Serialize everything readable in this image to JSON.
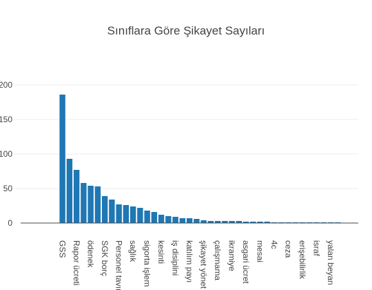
{
  "chart_data": {
    "type": "bar",
    "title": "Sınıflara Göre Şikayet Sayıları",
    "xlabel": "",
    "ylabel": "",
    "ylim": [
      0,
      200
    ],
    "yticks": [
      0,
      50,
      100,
      150,
      200
    ],
    "grid": true,
    "legend": "none",
    "bar_color": "#1f77b4",
    "categories": [
      "GSS",
      "",
      "Rapor ücreti",
      "",
      "ödenek",
      "",
      "SGK borç",
      "",
      "Personel tavır",
      "",
      "sağlık",
      "",
      "sigorta işlem",
      "",
      "kesinti",
      "",
      "iş disiplini",
      "",
      "katılım payı",
      "",
      "şikayet yönet",
      "",
      "çalışmama",
      "",
      "ikramiye",
      "",
      "asgari ücret",
      "",
      "mesai",
      "",
      "4c",
      "",
      "ceza",
      "",
      "erişebilirlik",
      "",
      "israf",
      "",
      "yalan beyan",
      ""
    ],
    "values": [
      186,
      93,
      77,
      58,
      54,
      53,
      39,
      34,
      27,
      26,
      24,
      22,
      18,
      16,
      12,
      10,
      9,
      7,
      7,
      6,
      4,
      3,
      3,
      3,
      3,
      3,
      2,
      2,
      2,
      2,
      1,
      1,
      1,
      1,
      1,
      1,
      1,
      1,
      1,
      1
    ]
  }
}
